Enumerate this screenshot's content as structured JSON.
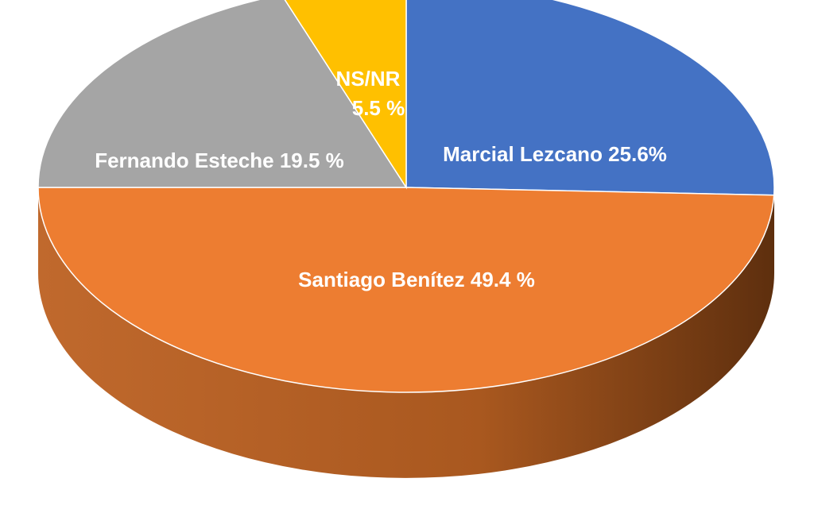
{
  "chart_data": {
    "type": "pie",
    "style": "3d",
    "title": "",
    "slices": [
      {
        "name": "Marcial Lezcano",
        "label": "Marcial Lezcano  25.6%",
        "value": 25.6,
        "color": "#4472C4"
      },
      {
        "name": "Santiago Benítez",
        "label": "Santiago Benítez  49.4 %",
        "value": 49.4,
        "color": "#ED7D31"
      },
      {
        "name": "Fernando Esteche",
        "label": "Fernando Esteche 19.5 %",
        "value": 19.5,
        "color": "#A5A5A5"
      },
      {
        "name": "NS/NR",
        "label_lines": [
          "NS/NR",
          "5.5 %"
        ],
        "value": 5.5,
        "color": "#FFC000"
      }
    ],
    "side_colors": {
      "light": "#C0692D",
      "dark": "#5E2F0E"
    }
  }
}
